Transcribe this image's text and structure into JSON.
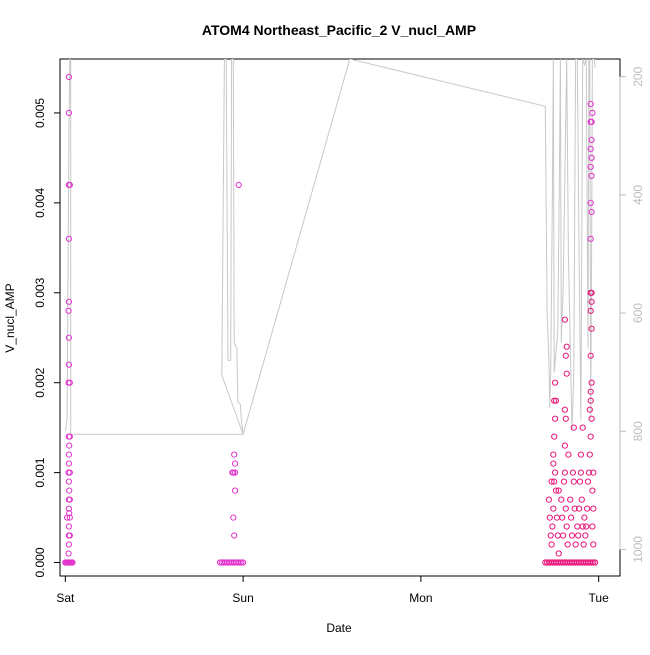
{
  "chart_data": {
    "type": "scatter",
    "title": "ATOM4 Northeast_Pacific_2 V_nucl_AMP",
    "xlabel": "Date",
    "ylabel": "V_nucl_AMP",
    "xlim": [
      -0.03,
      3.12
    ],
    "ylim": [
      -0.00015,
      0.0056
    ],
    "x_ticks": [
      {
        "value": 0,
        "label": "Sat"
      },
      {
        "value": 1,
        "label": "Sun"
      },
      {
        "value": 2,
        "label": "Mon"
      },
      {
        "value": 3,
        "label": "Tue"
      }
    ],
    "y_ticks": [
      {
        "value": 0.0,
        "label": "0.000"
      },
      {
        "value": 0.001,
        "label": "0.001"
      },
      {
        "value": 0.002,
        "label": "0.002"
      },
      {
        "value": 0.003,
        "label": "0.003"
      },
      {
        "value": 0.004,
        "label": "0.004"
      },
      {
        "value": 0.005,
        "label": "0.005"
      }
    ],
    "y2_lim": [
      1045,
      170
    ],
    "y2_ticks": [
      {
        "value": 200,
        "label": "200"
      },
      {
        "value": 400,
        "label": "400"
      },
      {
        "value": 600,
        "label": "600"
      },
      {
        "value": 800,
        "label": "800"
      },
      {
        "value": 1000,
        "label": "1000"
      }
    ],
    "point_color_a": "#e333cc",
    "point_color_b": "#e8157a",
    "line_color": "#c8c8c8",
    "line_series": {
      "y_axis": "right",
      "points": [
        [
          0.0,
          800
        ],
        [
          0.01,
          780
        ],
        [
          0.02,
          300
        ],
        [
          0.025,
          170
        ],
        [
          0.03,
          170
        ],
        [
          0.03,
          805
        ],
        [
          1.0,
          805
        ],
        [
          0.88,
          705
        ],
        [
          0.895,
          170
        ],
        [
          0.905,
          170
        ],
        [
          0.915,
          680
        ],
        [
          0.93,
          680
        ],
        [
          0.935,
          170
        ],
        [
          0.945,
          170
        ],
        [
          0.95,
          650
        ],
        [
          0.965,
          660
        ],
        [
          0.97,
          750
        ],
        [
          0.985,
          755
        ],
        [
          0.99,
          780
        ],
        [
          1.0,
          805
        ],
        [
          1.6,
          170
        ],
        [
          2.7,
          250
        ],
        [
          2.71,
          600
        ],
        [
          2.72,
          680
        ],
        [
          2.725,
          760
        ],
        [
          2.73,
          700
        ],
        [
          2.74,
          400
        ],
        [
          2.745,
          170
        ],
        [
          2.75,
          700
        ],
        [
          2.77,
          630
        ],
        [
          2.78,
          330
        ],
        [
          2.785,
          170
        ],
        [
          2.79,
          650
        ],
        [
          2.8,
          560
        ],
        [
          2.82,
          170
        ],
        [
          2.83,
          500
        ],
        [
          2.85,
          800
        ],
        [
          2.86,
          700
        ],
        [
          2.87,
          170
        ],
        [
          2.88,
          170
        ],
        [
          2.89,
          500
        ],
        [
          2.9,
          780
        ],
        [
          2.91,
          170
        ],
        [
          2.92,
          180
        ],
        [
          2.93,
          170
        ],
        [
          2.94,
          660
        ],
        [
          2.945,
          170
        ],
        [
          2.95,
          170
        ],
        [
          2.955,
          780
        ],
        [
          2.96,
          500
        ],
        [
          2.965,
          170
        ],
        [
          2.975,
          170
        ],
        [
          2.98,
          185
        ]
      ]
    },
    "scatter_series": [
      {
        "color": "#e333cc",
        "points": [
          [
            0.02,
            0.0054
          ],
          [
            0.02,
            0.005
          ],
          [
            0.02,
            0.0042
          ],
          [
            0.025,
            0.0042
          ],
          [
            0.02,
            0.0036
          ],
          [
            0.02,
            0.0029
          ],
          [
            0.018,
            0.0028
          ],
          [
            0.02,
            0.0025
          ],
          [
            0.02,
            0.0022
          ],
          [
            0.018,
            0.002
          ],
          [
            0.025,
            0.002
          ],
          [
            0.02,
            0.0014
          ],
          [
            0.025,
            0.0014
          ],
          [
            0.022,
            0.0013
          ],
          [
            0.02,
            0.0012
          ],
          [
            0.02,
            0.0011
          ],
          [
            0.018,
            0.001
          ],
          [
            0.025,
            0.001
          ],
          [
            0.02,
            0.0009
          ],
          [
            0.022,
            0.0008
          ],
          [
            0.02,
            0.0007
          ],
          [
            0.025,
            0.0007
          ],
          [
            0.02,
            0.0006
          ],
          [
            0.022,
            0.00055
          ],
          [
            0.01,
            0.0005
          ],
          [
            0.025,
            0.0005
          ],
          [
            0.02,
            0.0004
          ],
          [
            0.02,
            0.0003
          ],
          [
            0.025,
            0.0003
          ],
          [
            0.02,
            0.0002
          ],
          [
            0.018,
            0.0001
          ],
          [
            0.0,
            0.0
          ],
          [
            0.005,
            0.0
          ],
          [
            0.01,
            0.0
          ],
          [
            0.015,
            0.0
          ],
          [
            0.02,
            0.0
          ],
          [
            0.025,
            0.0
          ],
          [
            0.03,
            0.0
          ],
          [
            0.035,
            0.0
          ],
          [
            0.04,
            0.0
          ],
          [
            0.975,
            0.0042
          ],
          [
            0.95,
            0.0012
          ],
          [
            0.955,
            0.0011
          ],
          [
            0.94,
            0.001
          ],
          [
            0.945,
            0.001
          ],
          [
            0.955,
            0.001
          ],
          [
            0.955,
            0.0008
          ],
          [
            0.945,
            0.0005
          ],
          [
            0.95,
            0.0003
          ],
          [
            0.87,
            0.0
          ],
          [
            0.88,
            0.0
          ],
          [
            0.89,
            0.0
          ],
          [
            0.9,
            0.0
          ],
          [
            0.91,
            0.0
          ],
          [
            0.92,
            0.0
          ],
          [
            0.93,
            0.0
          ],
          [
            0.94,
            0.0
          ],
          [
            0.95,
            0.0
          ],
          [
            0.96,
            0.0
          ],
          [
            0.97,
            0.0
          ],
          [
            0.98,
            0.0
          ],
          [
            0.99,
            0.0
          ],
          [
            1.0,
            0.0
          ],
          [
            2.955,
            0.0051
          ],
          [
            2.965,
            0.005
          ],
          [
            2.955,
            0.0049
          ],
          [
            2.96,
            0.0049
          ],
          [
            2.96,
            0.0047
          ],
          [
            2.955,
            0.0046
          ],
          [
            2.96,
            0.0045
          ],
          [
            2.955,
            0.0044
          ],
          [
            2.96,
            0.0043
          ],
          [
            2.955,
            0.004
          ],
          [
            2.96,
            0.0039
          ],
          [
            2.955,
            0.0036
          ]
        ]
      },
      {
        "color": "#e8157a",
        "points": [
          [
            2.72,
            0.0007
          ],
          [
            2.725,
            0.0005
          ],
          [
            2.73,
            0.0003
          ],
          [
            2.735,
            0.0002
          ],
          [
            2.74,
            0.0004
          ],
          [
            2.745,
            0.0006
          ],
          [
            2.75,
            0.0009
          ],
          [
            2.755,
            0.001
          ],
          [
            2.76,
            0.0008
          ],
          [
            2.765,
            0.0005
          ],
          [
            2.77,
            0.0003
          ],
          [
            2.775,
            0.0001
          ],
          [
            2.745,
            0.0012
          ],
          [
            2.75,
            0.0014
          ],
          [
            2.755,
            0.0016
          ],
          [
            2.75,
            0.0018
          ],
          [
            2.755,
            0.002
          ],
          [
            2.76,
            0.0018
          ],
          [
            2.745,
            0.0011
          ],
          [
            2.79,
            0.0007
          ],
          [
            2.795,
            0.0005
          ],
          [
            2.8,
            0.0003
          ],
          [
            2.805,
            0.0009
          ],
          [
            2.81,
            0.001
          ],
          [
            2.815,
            0.0006
          ],
          [
            2.82,
            0.0004
          ],
          [
            2.825,
            0.0002
          ],
          [
            2.81,
            0.0013
          ],
          [
            2.815,
            0.0016
          ],
          [
            2.81,
            0.0017
          ],
          [
            2.82,
            0.0021
          ],
          [
            2.815,
            0.0023
          ],
          [
            2.82,
            0.0024
          ],
          [
            2.81,
            0.0027
          ],
          [
            2.83,
            0.0012
          ],
          [
            2.84,
            0.0007
          ],
          [
            2.845,
            0.0005
          ],
          [
            2.85,
            0.0003
          ],
          [
            2.855,
            0.001
          ],
          [
            2.86,
            0.0009
          ],
          [
            2.865,
            0.0006
          ],
          [
            2.87,
            0.0002
          ],
          [
            2.86,
            0.0015
          ],
          [
            2.88,
            0.0004
          ],
          [
            2.885,
            0.0003
          ],
          [
            2.89,
            0.0006
          ],
          [
            2.895,
            0.0009
          ],
          [
            2.9,
            0.001
          ],
          [
            2.905,
            0.0007
          ],
          [
            2.91,
            0.0004
          ],
          [
            2.915,
            0.0002
          ],
          [
            2.92,
            0.0005
          ],
          [
            2.925,
            0.0003
          ],
          [
            2.93,
            0.0004
          ],
          [
            2.935,
            0.0006
          ],
          [
            2.94,
            0.0009
          ],
          [
            2.945,
            0.001
          ],
          [
            2.95,
            0.0012
          ],
          [
            2.955,
            0.0014
          ],
          [
            2.95,
            0.0017
          ],
          [
            2.955,
            0.0019
          ],
          [
            2.96,
            0.002
          ],
          [
            2.955,
            0.0023
          ],
          [
            2.96,
            0.0026
          ],
          [
            2.955,
            0.0028
          ],
          [
            2.96,
            0.0029
          ],
          [
            2.955,
            0.003
          ],
          [
            2.96,
            0.003
          ],
          [
            2.955,
            0.0018
          ],
          [
            2.96,
            0.0016
          ],
          [
            2.965,
            0.0008
          ],
          [
            2.97,
            0.0006
          ],
          [
            2.965,
            0.0004
          ],
          [
            2.97,
            0.0002
          ],
          [
            2.97,
            0.001
          ],
          [
            2.91,
            0.0015
          ],
          [
            2.9,
            0.0012
          ],
          [
            2.735,
            0.0009
          ],
          [
            2.775,
            0.0008
          ],
          [
            2.7,
            0.0
          ],
          [
            2.71,
            0.0
          ],
          [
            2.72,
            0.0
          ],
          [
            2.73,
            0.0
          ],
          [
            2.74,
            0.0
          ],
          [
            2.75,
            0.0
          ],
          [
            2.76,
            0.0
          ],
          [
            2.77,
            0.0
          ],
          [
            2.78,
            0.0
          ],
          [
            2.79,
            0.0
          ],
          [
            2.8,
            0.0
          ],
          [
            2.81,
            0.0
          ],
          [
            2.82,
            0.0
          ],
          [
            2.83,
            0.0
          ],
          [
            2.84,
            0.0
          ],
          [
            2.85,
            0.0
          ],
          [
            2.86,
            0.0
          ],
          [
            2.87,
            0.0
          ],
          [
            2.88,
            0.0
          ],
          [
            2.89,
            0.0
          ],
          [
            2.9,
            0.0
          ],
          [
            2.91,
            0.0
          ],
          [
            2.92,
            0.0
          ],
          [
            2.93,
            0.0
          ],
          [
            2.94,
            0.0
          ],
          [
            2.95,
            0.0
          ],
          [
            2.96,
            0.0
          ],
          [
            2.97,
            0.0
          ],
          [
            2.98,
            0.0
          ]
        ]
      }
    ],
    "grid": false,
    "legend": "none"
  }
}
